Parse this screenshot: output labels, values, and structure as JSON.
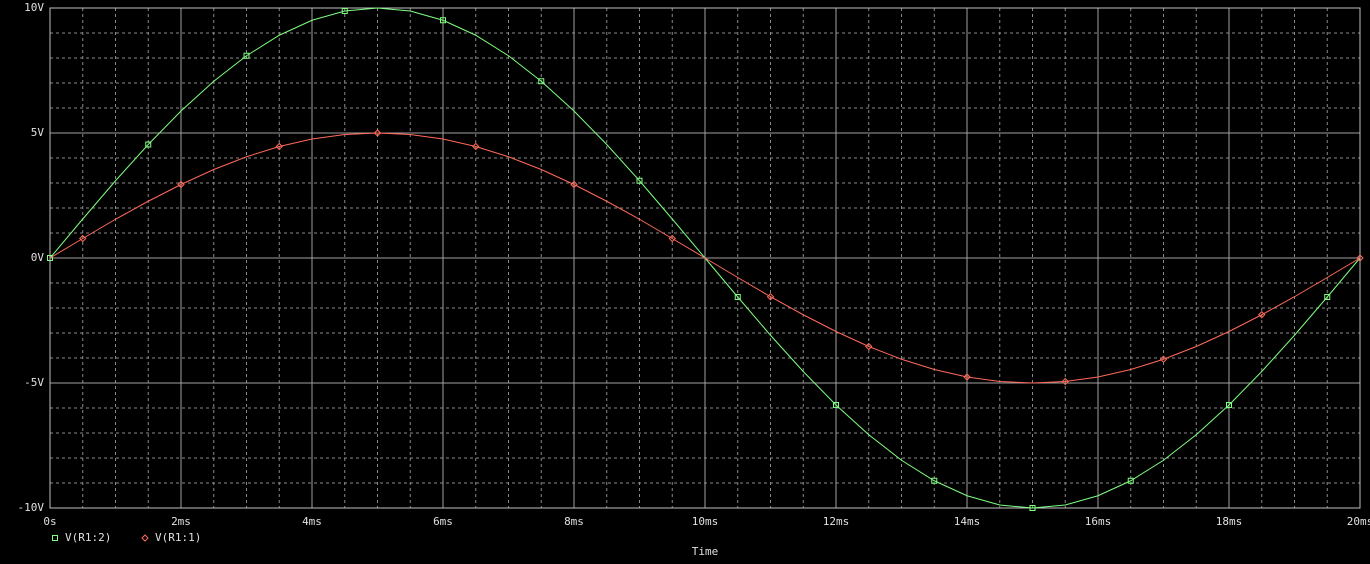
{
  "chart_data": {
    "type": "line",
    "x_label": "Time",
    "x": [
      0,
      0.5,
      1,
      1.5,
      2,
      2.5,
      3,
      3.5,
      4,
      4.5,
      5,
      5.5,
      6,
      6.5,
      7,
      7.5,
      8,
      8.5,
      9,
      9.5,
      10,
      10.5,
      11,
      11.5,
      12,
      12.5,
      13,
      13.5,
      14,
      14.5,
      15,
      15.5,
      16,
      16.5,
      17,
      17.5,
      18,
      18.5,
      19,
      19.5,
      20
    ],
    "series": [
      {
        "name": "V(R1:2)",
        "color": "#7fff7f",
        "marker": "square",
        "values": [
          0,
          1.56,
          3.09,
          4.54,
          5.88,
          7.07,
          8.09,
          8.91,
          9.51,
          9.88,
          10,
          9.88,
          9.51,
          8.91,
          8.09,
          7.07,
          5.88,
          4.54,
          3.09,
          1.56,
          0,
          -1.56,
          -3.09,
          -4.54,
          -5.88,
          -7.07,
          -8.09,
          -8.91,
          -9.51,
          -9.88,
          -10,
          -9.88,
          -9.51,
          -8.91,
          -8.09,
          -7.07,
          -5.88,
          -4.54,
          -3.09,
          -1.56,
          0
        ]
      },
      {
        "name": "V(R1:1)",
        "color": "#ff6a5a",
        "marker": "diamond",
        "values": [
          0,
          0.78,
          1.55,
          2.27,
          2.94,
          3.54,
          4.05,
          4.46,
          4.76,
          4.94,
          5,
          4.94,
          4.76,
          4.46,
          4.05,
          3.54,
          2.94,
          2.27,
          1.55,
          0.78,
          0,
          -0.78,
          -1.55,
          -2.27,
          -2.94,
          -3.54,
          -4.05,
          -4.46,
          -4.76,
          -4.94,
          -5,
          -4.94,
          -4.76,
          -4.46,
          -4.05,
          -3.54,
          -2.94,
          -2.27,
          -1.55,
          -0.78,
          0
        ]
      }
    ],
    "xlim": [
      0,
      20
    ],
    "xticks": [
      {
        "value": 0,
        "label": "0s"
      },
      {
        "value": 2,
        "label": "2ms"
      },
      {
        "value": 4,
        "label": "4ms"
      },
      {
        "value": 6,
        "label": "6ms"
      },
      {
        "value": 8,
        "label": "8ms"
      },
      {
        "value": 10,
        "label": "10ms"
      },
      {
        "value": 12,
        "label": "12ms"
      },
      {
        "value": 14,
        "label": "14ms"
      },
      {
        "value": 16,
        "label": "16ms"
      },
      {
        "value": 18,
        "label": "18ms"
      },
      {
        "value": 20,
        "label": "20ms"
      }
    ],
    "ylim": [
      -10,
      10
    ],
    "yticks": [
      {
        "value": 10,
        "label": "10V"
      },
      {
        "value": 5,
        "label": "5V"
      },
      {
        "value": 0,
        "label": "0V"
      },
      {
        "value": -5,
        "label": "-5V"
      },
      {
        "value": -10,
        "label": "-10V"
      }
    ],
    "grid": true,
    "background": "#000000"
  }
}
